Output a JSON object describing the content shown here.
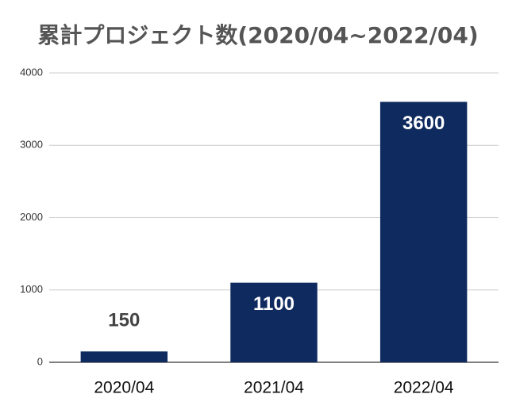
{
  "chart_data": {
    "type": "bar",
    "title": "累計プロジェクト数(2020/04~2022/04)",
    "categories": [
      "2020/04",
      "2021/04",
      "2022/04"
    ],
    "values": [
      150,
      1100,
      3600
    ],
    "color": "#0f2a5f",
    "ylim": [
      0,
      4000
    ],
    "yticks": [
      0,
      1000,
      2000,
      3000,
      4000
    ],
    "grid": true
  }
}
